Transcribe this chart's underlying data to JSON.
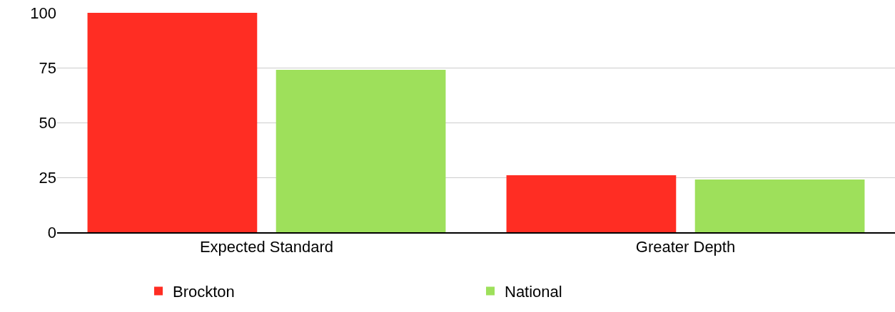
{
  "chart_data": {
    "type": "bar",
    "categories": [
      "Expected Standard",
      "Greater Depth"
    ],
    "series": [
      {
        "name": "Brockton",
        "color": "#ff2d23",
        "values": [
          100,
          26
        ]
      },
      {
        "name": "National",
        "color": "#9ee05b",
        "values": [
          74,
          24
        ]
      }
    ],
    "ylim": [
      0,
      100
    ],
    "yticks": [
      0,
      25,
      50,
      75,
      100
    ],
    "grid": "y",
    "legend": "bottom"
  }
}
